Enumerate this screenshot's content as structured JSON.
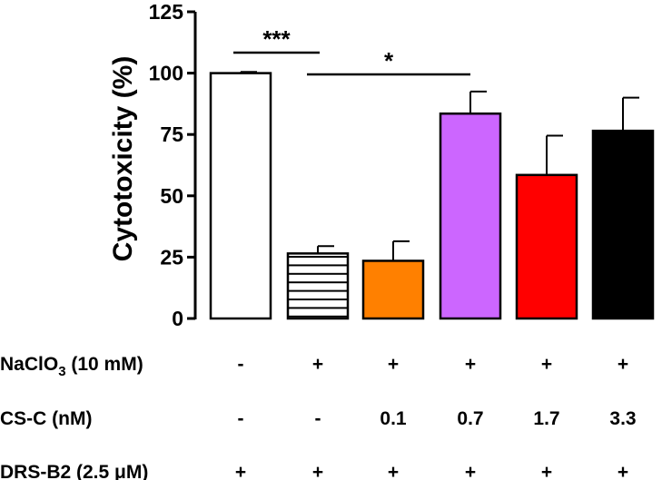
{
  "chart_data": {
    "type": "bar",
    "title": "",
    "xlabel": "",
    "ylabel": "Cytotoxicity (%)",
    "ylim": [
      0,
      125
    ],
    "yticks": [
      0,
      25,
      50,
      75,
      100,
      125
    ],
    "ytick_labels": [
      "0",
      "25",
      "50",
      "75",
      "100",
      "125"
    ],
    "grid": false,
    "bars": [
      {
        "value": 100,
        "error": 0.5,
        "fill": "#ffffff",
        "pattern": "none"
      },
      {
        "value": 26.5,
        "error": 3,
        "fill": "#ffffff",
        "pattern": "horizontal-lines"
      },
      {
        "value": 23.5,
        "error": 8,
        "fill": "#ff8000",
        "pattern": "none"
      },
      {
        "value": 83.5,
        "error": 9,
        "fill": "#cc66ff",
        "pattern": "none"
      },
      {
        "value": 58.5,
        "error": 16,
        "fill": "#ff0000",
        "pattern": "none"
      },
      {
        "value": 76.5,
        "error": 13.5,
        "fill": "#000000",
        "pattern": "none"
      }
    ],
    "conditions": [
      {
        "label": "NaClO",
        "subscript": "3",
        "label_suffix": " (10 mM)",
        "values": [
          "-",
          "+",
          "+",
          "+",
          "+",
          "+"
        ]
      },
      {
        "label": "CS-C (nM)",
        "subscript": "",
        "label_suffix": "",
        "values": [
          "-",
          "-",
          "0.1",
          "0.7",
          "1.7",
          "3.3"
        ]
      },
      {
        "label": "DRS-B2 (2.5 ",
        "subscript": "",
        "label_suffix": "μM)",
        "values": [
          "+",
          "+",
          "+",
          "+",
          "+",
          "+"
        ]
      }
    ],
    "significance": [
      {
        "from": 0,
        "to": 1,
        "label": "***",
        "level": 108
      },
      {
        "from": 1,
        "to": 3,
        "label": "*",
        "level": 100
      }
    ]
  }
}
